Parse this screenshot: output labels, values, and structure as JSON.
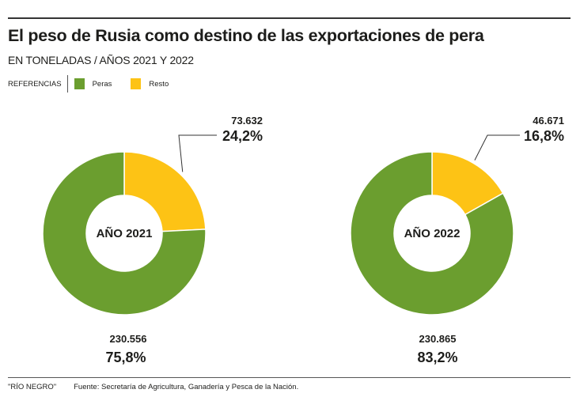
{
  "header": {
    "title": "El peso de Rusia como destino de las exportaciones de pera",
    "subtitle": "EN TONELADAS / AÑOS 2021 Y 2022"
  },
  "legend": {
    "label": "REFERENCIAS",
    "items": [
      {
        "label": "Peras",
        "color": "#6b9e2f"
      },
      {
        "label": "Resto",
        "color": "#fdc315"
      }
    ]
  },
  "footer": {
    "brand": "\"RÍO NEGRO\"",
    "source": "Fuente: Secretaría de Agricultura, Ganadería y Pesca de la Nación."
  },
  "chart_data": [
    {
      "type": "pie",
      "title": "AÑO 2021",
      "categories": [
        "Peras",
        "Resto"
      ],
      "values": [
        230556,
        73632
      ],
      "value_labels": [
        "230.556",
        "73.632"
      ],
      "percent_labels": [
        "75,8%",
        "24,2%"
      ],
      "colors": [
        "#6b9e2f",
        "#fdc315"
      ]
    },
    {
      "type": "pie",
      "title": "AÑO 2022",
      "categories": [
        "Peras",
        "Resto"
      ],
      "values": [
        230865,
        46671
      ],
      "value_labels": [
        "230.865",
        "46.671"
      ],
      "percent_labels": [
        "83,2%",
        "16,8%"
      ],
      "colors": [
        "#6b9e2f",
        "#fdc315"
      ]
    }
  ]
}
